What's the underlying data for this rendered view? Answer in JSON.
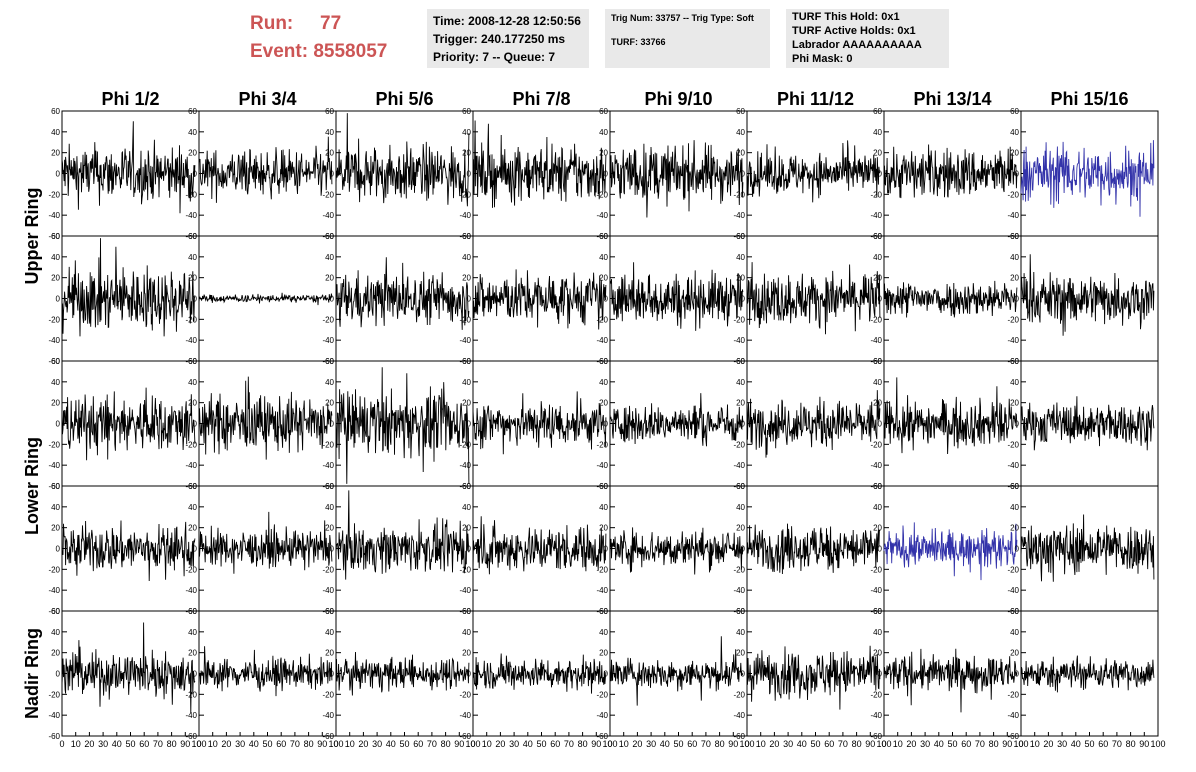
{
  "run": {
    "run_label": "Run:",
    "run_value": "77",
    "event_label": "Event:",
    "event_value": "8558057"
  },
  "info_box_1": [
    "Time: 2008-12-28 12:50:56",
    "Trigger: 240.177250 ms",
    "Priority: 7 -- Queue: 7"
  ],
  "info_box_2": [
    "Trig Num: 33757 -- Trig Type: Soft",
    "TURF: 33766"
  ],
  "info_box_3": [
    "TURF This Hold: 0x1",
    "TURF Active Holds: 0x1",
    "Labrador AAAAAAAAAA",
    "Phi Mask: 0"
  ],
  "chart_data": {
    "type": "line",
    "columns": [
      "Phi 1/2",
      "Phi 3/4",
      "Phi 5/6",
      "Phi 7/8",
      "Phi 9/10",
      "Phi 11/12",
      "Phi 13/14",
      "Phi 15/16"
    ],
    "rows": [
      "Upper Ring",
      "Lower Ring",
      "Nadir Ring"
    ],
    "xlim": [
      0,
      100
    ],
    "ylim": [
      -60,
      60
    ],
    "y_ticks": [
      60,
      40,
      20,
      0,
      -20,
      -40,
      -60
    ],
    "x_ticks": [
      0,
      10,
      20,
      30,
      40,
      50,
      60,
      70,
      80,
      90,
      100
    ],
    "x_tick_labels": [
      "0",
      "10",
      "20",
      "30",
      "40",
      "50",
      "60",
      "70",
      "80",
      "90",
      "100"
    ],
    "samples_per_trace": 260,
    "trace_color": "#000000",
    "highlight_color": "#3333aa",
    "panels": [
      {
        "row": 0,
        "col": 0,
        "amplitude": 22
      },
      {
        "row": 0,
        "col": 1,
        "amplitude": 18
      },
      {
        "row": 0,
        "col": 2,
        "amplitude": 22
      },
      {
        "row": 0,
        "col": 3,
        "amplitude": 22
      },
      {
        "row": 0,
        "col": 4,
        "amplitude": 22
      },
      {
        "row": 0,
        "col": 5,
        "amplitude": 16
      },
      {
        "row": 0,
        "col": 6,
        "amplitude": 20
      },
      {
        "row": 0,
        "col": 7,
        "amplitude": 22,
        "highlight": true
      },
      {
        "row": 1,
        "col": 0,
        "amplitude": 25
      },
      {
        "row": 1,
        "col": 1,
        "amplitude": 3
      },
      {
        "row": 1,
        "col": 2,
        "amplitude": 20
      },
      {
        "row": 1,
        "col": 3,
        "amplitude": 20
      },
      {
        "row": 1,
        "col": 4,
        "amplitude": 20
      },
      {
        "row": 1,
        "col": 5,
        "amplitude": 20
      },
      {
        "row": 1,
        "col": 6,
        "amplitude": 14
      },
      {
        "row": 1,
        "col": 7,
        "amplitude": 20
      },
      {
        "row": 2,
        "col": 0,
        "amplitude": 22
      },
      {
        "row": 2,
        "col": 1,
        "amplitude": 22
      },
      {
        "row": 2,
        "col": 2,
        "amplitude": 25
      },
      {
        "row": 2,
        "col": 3,
        "amplitude": 18
      },
      {
        "row": 2,
        "col": 4,
        "amplitude": 15
      },
      {
        "row": 2,
        "col": 5,
        "amplitude": 18
      },
      {
        "row": 2,
        "col": 6,
        "amplitude": 18
      },
      {
        "row": 2,
        "col": 7,
        "amplitude": 16
      },
      {
        "row": 3,
        "col": 0,
        "amplitude": 18
      },
      {
        "row": 3,
        "col": 1,
        "amplitude": 14
      },
      {
        "row": 3,
        "col": 2,
        "amplitude": 18
      },
      {
        "row": 3,
        "col": 3,
        "amplitude": 18
      },
      {
        "row": 3,
        "col": 4,
        "amplitude": 15
      },
      {
        "row": 3,
        "col": 5,
        "amplitude": 18
      },
      {
        "row": 3,
        "col": 6,
        "amplitude": 14,
        "highlight": true
      },
      {
        "row": 3,
        "col": 7,
        "amplitude": 20
      },
      {
        "row": 4,
        "col": 0,
        "amplitude": 18
      },
      {
        "row": 4,
        "col": 1,
        "amplitude": 12
      },
      {
        "row": 4,
        "col": 2,
        "amplitude": 12
      },
      {
        "row": 4,
        "col": 3,
        "amplitude": 12
      },
      {
        "row": 4,
        "col": 4,
        "amplitude": 12
      },
      {
        "row": 4,
        "col": 5,
        "amplitude": 18
      },
      {
        "row": 4,
        "col": 6,
        "amplitude": 14
      },
      {
        "row": 4,
        "col": 7,
        "amplitude": 12
      }
    ]
  }
}
